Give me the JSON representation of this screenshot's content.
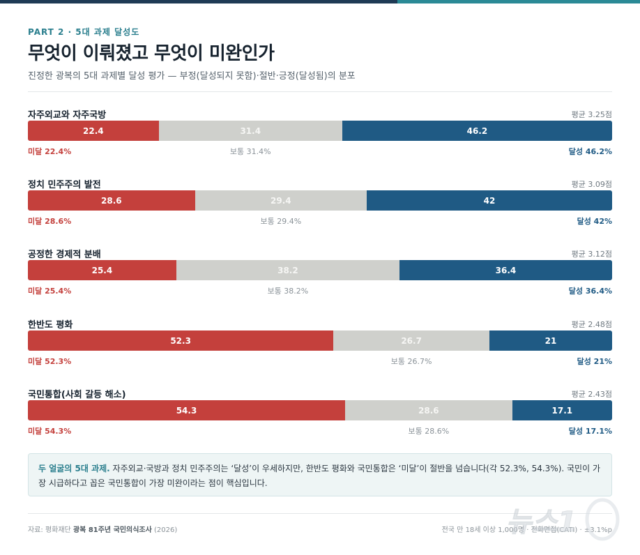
{
  "header": {
    "eyebrow": "PART 2 · 5대 과제 달성도",
    "title": "무엇이 이뤄졌고 무엇이 미완인가",
    "subtitle": "진정한 광복의 5대 과제별 달성 평가 — 부정(달성되지 못함)·절반·긍정(달성됨)의 분포"
  },
  "chart_data": {
    "type": "bar",
    "stacked": true,
    "orientation": "horizontal",
    "unit": "%",
    "segment_labels": [
      "미달",
      "보통",
      "달성"
    ],
    "categories": [
      "자주외교와 자주국방",
      "정치 민주주의 발전",
      "공정한 경제적 분배",
      "한반도 평화",
      "국민통합(사회 갈등 해소)"
    ],
    "series": [
      {
        "name": "미달",
        "values": [
          22.4,
          28.6,
          25.4,
          52.3,
          54.3
        ],
        "color": "#c4403c"
      },
      {
        "name": "보통",
        "values": [
          31.4,
          29.4,
          38.2,
          26.7,
          28.6
        ],
        "color": "#cfd0cc"
      },
      {
        "name": "달성",
        "values": [
          46.2,
          42,
          36.4,
          21,
          17.1
        ],
        "color": "#1f5a84"
      }
    ],
    "averages": [
      "평균 3.25점",
      "평균 3.09점",
      "평균 3.12점",
      "평균 2.48점",
      "평균 2.43점"
    ],
    "legend_labels": [
      [
        "미달 22.4%",
        "보통 31.4%",
        "달성 46.2%"
      ],
      [
        "미달 28.6%",
        "보통 29.4%",
        "달성 42%"
      ],
      [
        "미달 25.4%",
        "보통 38.2%",
        "달성 36.4%"
      ],
      [
        "미달 52.3%",
        "보통 26.7%",
        "달성 21%"
      ],
      [
        "미달 54.3%",
        "보통 28.6%",
        "달성 17.1%"
      ]
    ],
    "bar_labels": [
      [
        "22.4",
        "31.4",
        "46.2"
      ],
      [
        "28.6",
        "29.4",
        "42"
      ],
      [
        "25.4",
        "38.2",
        "36.4"
      ],
      [
        "52.3",
        "26.7",
        "21"
      ],
      [
        "54.3",
        "28.6",
        "17.1"
      ]
    ]
  },
  "note": {
    "lead": "두 얼굴의 5대 과제.",
    "body": " 자주외교·국방과 정치 민주주의는 ‘달성’이 우세하지만, 한반도 평화와 국민통합은 ‘미달’이 절반을 넘습니다(각 52.3%, 54.3%). 국민이 가장 시급하다고 꼽은 국민통합이 가장 미완이라는 점이 핵심입니다."
  },
  "footer": {
    "source_prefix": "자료: 평화재단 ",
    "source_bold": "광복 81주년 국민의식조사",
    "source_year": " (2026)",
    "method": "전국 만 18세 이상 1,000명 · 전화면접(CATI) · ±3.1%p"
  },
  "watermark": {
    "text": "뉴스1",
    "icon": "news1-logo"
  }
}
